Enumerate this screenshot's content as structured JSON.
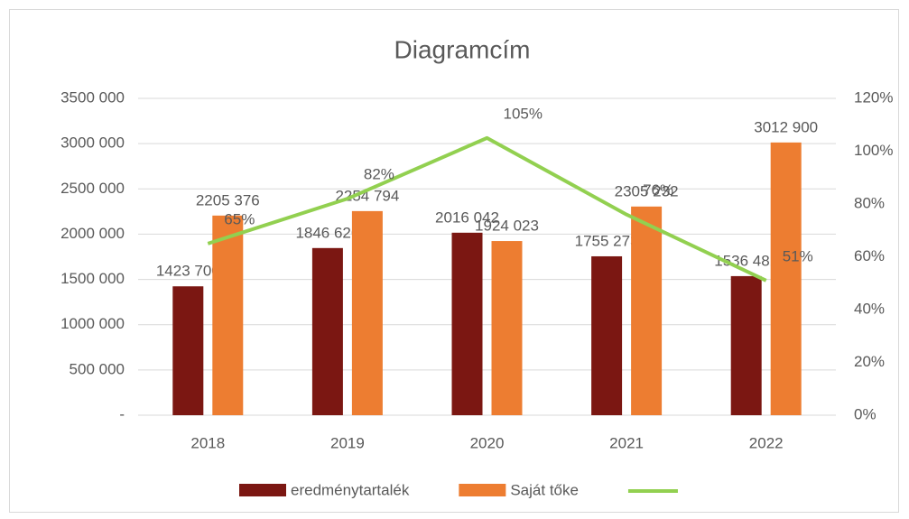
{
  "chart_data": {
    "type": "bar",
    "title": "Diagramcím",
    "categories": [
      "2018",
      "2019",
      "2020",
      "2021",
      "2022"
    ],
    "series": [
      {
        "name": "eredménytartalék",
        "color": "#7b1712",
        "values": [
          1423700,
          1846626,
          2016042,
          1755273,
          1536481
        ],
        "value_labels": [
          "1423 700",
          "1846 626",
          "2016 042",
          "1755 273",
          "1536 481"
        ]
      },
      {
        "name": "Saját tőke",
        "color": "#ed7d31",
        "values": [
          2205376,
          2254794,
          1924023,
          2305232,
          3012900
        ],
        "value_labels": [
          "2205 376",
          "2254 794",
          "1924 023",
          "2305 232",
          "3012 900"
        ]
      },
      {
        "type": "line",
        "axis": "y2",
        "color": "#92d050",
        "values": [
          65,
          82,
          105,
          76,
          51
        ],
        "value_labels": [
          "65%",
          "82%",
          "105%",
          "76%",
          "51%"
        ]
      }
    ],
    "ylim": [
      0,
      3500000
    ],
    "yticks": [
      {
        "value": 0,
        "label": "-"
      },
      {
        "value": 500000,
        "label": "500 000"
      },
      {
        "value": 1000000,
        "label": "1000 000"
      },
      {
        "value": 1500000,
        "label": "1500 000"
      },
      {
        "value": 2000000,
        "label": "2000 000"
      },
      {
        "value": 2500000,
        "label": "2500 000"
      },
      {
        "value": 3000000,
        "label": "3000 000"
      },
      {
        "value": 3500000,
        "label": "3500 000"
      }
    ],
    "y2lim": [
      0,
      120
    ],
    "y2ticks": [
      {
        "value": 0,
        "label": "0%"
      },
      {
        "value": 20,
        "label": "20%"
      },
      {
        "value": 40,
        "label": "40%"
      },
      {
        "value": 60,
        "label": "60%"
      },
      {
        "value": 80,
        "label": "80%"
      },
      {
        "value": 100,
        "label": "100%"
      },
      {
        "value": 120,
        "label": "120%"
      }
    ],
    "grid": true,
    "legend": "bottom"
  }
}
